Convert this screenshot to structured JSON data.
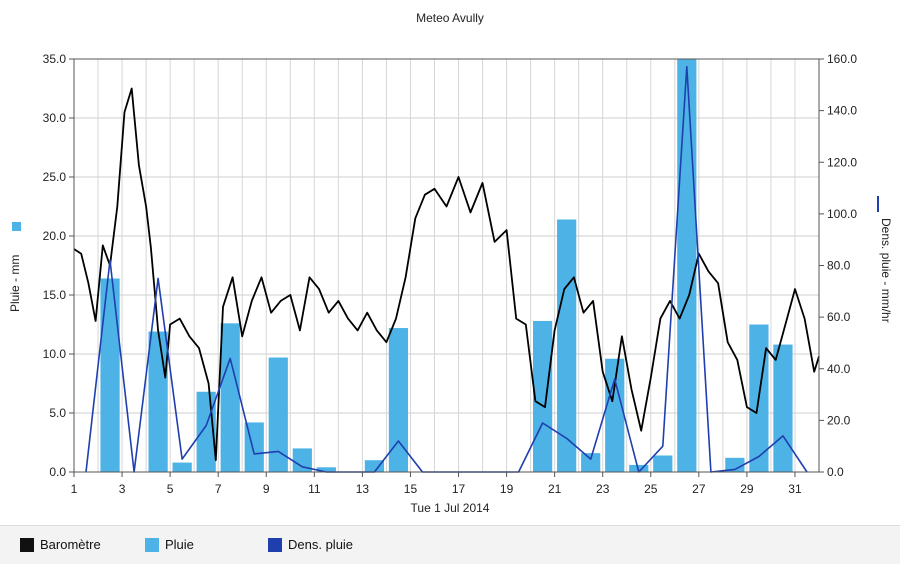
{
  "chart_data": {
    "type": "bar",
    "title": "Meteo  Avully",
    "xlabel": "Tue 1 Jul 2014",
    "ylabel": "Pluie - mm",
    "ylabel_right": "Dens. pluie - mm/hr",
    "xlim": [
      1,
      32
    ],
    "ylim": [
      0,
      35
    ],
    "ylim_right": [
      0,
      160
    ],
    "grid": true,
    "legend_position": "bottom",
    "x_ticks": [
      1,
      3,
      5,
      7,
      9,
      11,
      13,
      15,
      17,
      19,
      21,
      23,
      25,
      27,
      29,
      31
    ],
    "y_ticks_left": [
      "0.0",
      "5.0",
      "10.0",
      "15.0",
      "20.0",
      "25.0",
      "30.0",
      "35.0"
    ],
    "y_ticks_right": [
      "0.0",
      "20.0",
      "40.0",
      "60.0",
      "80.0",
      "100.0",
      "120.0",
      "140.0",
      "160.0"
    ],
    "series": [
      {
        "name": "Baromètre",
        "type": "line",
        "color": "#000000",
        "axis": "none",
        "x": [
          1,
          1.3,
          1.6,
          1.9,
          2.2,
          2.5,
          2.8,
          3.1,
          3.4,
          3.7,
          4.0,
          4.2,
          4.5,
          4.8,
          5.0,
          5.4,
          5.8,
          6.2,
          6.6,
          6.9,
          7.2,
          7.6,
          8.0,
          8.4,
          8.8,
          9.2,
          9.6,
          10.0,
          10.4,
          10.8,
          11.2,
          11.6,
          12.0,
          12.4,
          12.8,
          13.2,
          13.6,
          14.0,
          14.4,
          14.8,
          15.2,
          15.6,
          16.0,
          16.5,
          17.0,
          17.5,
          18.0,
          18.5,
          19.0,
          19.4,
          19.8,
          20.2,
          20.6,
          21.0,
          21.4,
          21.8,
          22.2,
          22.6,
          23.0,
          23.4,
          23.8,
          24.2,
          24.6,
          25.0,
          25.4,
          25.8,
          26.2,
          26.6,
          27.0,
          27.4,
          27.8,
          28.2,
          28.6,
          29.0,
          29.4,
          29.8,
          30.2,
          30.6,
          31.0,
          31.4,
          31.8,
          32.0
        ],
        "values": [
          18.9,
          18.5,
          16.0,
          12.8,
          19.2,
          17.5,
          22.5,
          30.5,
          32.5,
          26.0,
          22.5,
          19.0,
          12.0,
          8.0,
          12.5,
          13.0,
          11.5,
          10.5,
          7.5,
          1.0,
          14.0,
          16.5,
          11.5,
          14.5,
          16.5,
          13.5,
          14.5,
          15.0,
          12.0,
          16.5,
          15.5,
          13.5,
          14.5,
          13.0,
          12.0,
          13.5,
          12.0,
          11.0,
          13.0,
          16.5,
          21.5,
          23.5,
          24.0,
          22.5,
          25.0,
          22.0,
          24.5,
          19.5,
          20.5,
          13.0,
          12.5,
          6.0,
          5.5,
          12.0,
          15.5,
          16.5,
          13.5,
          14.5,
          8.5,
          6.0,
          11.5,
          7.0,
          3.5,
          8.0,
          13.0,
          14.5,
          13.0,
          15.0,
          18.5,
          17.0,
          16.0,
          11.0,
          9.5,
          5.5,
          5.0,
          10.5,
          9.5,
          12.5,
          15.5,
          13.0,
          8.5,
          9.8
        ]
      },
      {
        "name": "Pluie",
        "type": "bar",
        "color": "#4db3e6",
        "axis": "left",
        "x": [
          2.5,
          4.5,
          5.5,
          6.5,
          7.5,
          8.5,
          9.5,
          10.5,
          11.5,
          13.5,
          14.5,
          20.5,
          21.5,
          22.5,
          23.5,
          24.5,
          25.5,
          26.5,
          28.5,
          29.5,
          30.5
        ],
        "values": [
          16.4,
          11.9,
          0.8,
          6.8,
          12.6,
          4.2,
          9.7,
          2.0,
          0.4,
          1.0,
          12.2,
          12.8,
          21.4,
          1.6,
          9.6,
          0.6,
          1.4,
          35.0,
          1.2,
          12.5,
          10.8
        ]
      },
      {
        "name": "Dens. pluie",
        "type": "line",
        "color": "#1f3fae",
        "axis": "right",
        "x": [
          1.5,
          2.5,
          3.5,
          4.5,
          5.5,
          6.5,
          7.5,
          8.5,
          9.5,
          10.5,
          11.5,
          13.5,
          14.5,
          15.5,
          19.5,
          20.5,
          21.5,
          22.5,
          23.5,
          24.5,
          25.5,
          26.5,
          27.5,
          28.5,
          29.5,
          30.5,
          31.5
        ],
        "values": [
          0,
          82,
          0,
          75,
          5,
          18,
          44,
          7,
          8,
          2,
          0,
          0,
          12,
          0,
          0,
          19,
          13,
          5,
          36,
          0,
          10,
          157,
          0,
          1,
          6,
          14,
          0
        ]
      }
    ]
  },
  "legend": [
    {
      "label": "Baromètre",
      "color": "#111111"
    },
    {
      "label": "Pluie",
      "color": "#4db3e6"
    },
    {
      "label": "Dens. pluie",
      "color": "#1f3fae"
    }
  ]
}
